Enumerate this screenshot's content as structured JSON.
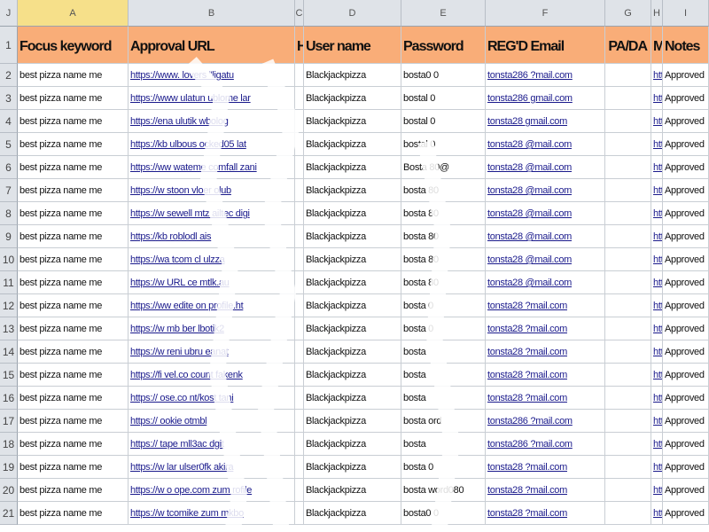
{
  "corner": "J",
  "columns": [
    "A",
    "B",
    "C",
    "D",
    "E",
    "F",
    "G",
    "H",
    "I"
  ],
  "header_row": {
    "number": "1",
    "cells": [
      "Focus keyword",
      "Approval URL",
      "H",
      "User name",
      "Password",
      "REG'D Email",
      "PA/DA",
      "M",
      "Notes"
    ]
  },
  "rows": [
    {
      "n": "2",
      "a": "best pizza name me",
      "b": "https://www.   lovers   \"ligatu",
      "d": "Blackjackpizza",
      "e": "bosta0   0",
      "f": "tonsta286   ?mail.com",
      "h": "htt",
      "i": "Approved"
    },
    {
      "n": "3",
      "a": "best pizza name me",
      "b": "https://www   ulatun   ublome   lar",
      "d": "Blackjackpizza",
      "e": "bostal   0",
      "f": "tonsta286   gmail.com",
      "h": "htt",
      "i": "Approved"
    },
    {
      "n": "4",
      "a": "best pizza name me",
      "b": "https://ena   ulutik   wbolog",
      "d": "Blackjackpizza",
      "e": "bostal   0",
      "f": "tonsta28   gmail.com",
      "h": "htt",
      "i": "Approved"
    },
    {
      "n": "5",
      "a": "best pizza name me",
      "b": "https://kb   ulbous   ocked05   lat",
      "d": "Blackjackpizza",
      "e": "bostal   0",
      "f": "tonsta28   @mail.com",
      "h": "htt",
      "i": "Approved"
    },
    {
      "n": "6",
      "a": "best pizza name me",
      "b": "https://ww   wateme   comfall   zani",
      "d": "Blackjackpizza",
      "e": "Bosta   80@",
      "f": "tonsta28   @mail.com",
      "h": "htt",
      "i": "Approved"
    },
    {
      "n": "7",
      "a": "best pizza name me",
      "b": "https://w   stoon   vloer   olub",
      "d": "Blackjackpizza",
      "e": "bosta   80",
      "f": "tonsta28   @mail.com",
      "h": "htt",
      "i": "Approved"
    },
    {
      "n": "8",
      "a": "best pizza name me",
      "b": "https://w   sewell   mtz   ailtec   digi",
      "d": "Blackjackpizza",
      "e": "bosta   80",
      "f": "tonsta28   @mail.com",
      "h": "htt",
      "i": "Approved"
    },
    {
      "n": "9",
      "a": "best pizza name me",
      "b": "https://kb   roblodl   ais",
      "d": "Blackjackpizza",
      "e": "bosta   80",
      "f": "tonsta28   @mail.com",
      "h": "htt",
      "i": "Approved"
    },
    {
      "n": "10",
      "a": "best pizza name me",
      "b": "https://wa   tcom   cl   ulzza",
      "d": "Blackjackpizza",
      "e": "bosta   80",
      "f": "tonsta28   @mail.com",
      "h": "htt",
      "i": "Approved"
    },
    {
      "n": "11",
      "a": "best pizza name me",
      "b": "https://w   URL   ce   mtlk.au",
      "d": "Blackjackpizza",
      "e": "bosta   80",
      "f": "tonsta28   @mail.com",
      "h": "htt",
      "i": "Approved"
    },
    {
      "n": "12",
      "a": "best pizza name me",
      "b": "https://ww   edite   on   profile.ht",
      "d": "Blackjackpizza",
      "e": "bosta   0",
      "f": "tonsta28   ?mail.com",
      "h": "htt",
      "i": "Approved"
    },
    {
      "n": "13",
      "a": "best pizza name me",
      "b": "https://w   mb   ber   lbotik2",
      "d": "Blackjackpizza",
      "e": "bosta   0",
      "f": "tonsta28   ?mail.com",
      "h": "htt",
      "i": "Approved"
    },
    {
      "n": "14",
      "a": "best pizza name me",
      "b": "https://w   reni   ubru   eanat",
      "d": "Blackjackpizza",
      "e": "bosta",
      "f": "tonsta28   ?mail.com",
      "h": "htt",
      "i": "Approved"
    },
    {
      "n": "15",
      "a": "best pizza name me",
      "b": "https://fi   vel.co   count   fakenk",
      "d": "Blackjackpizza",
      "e": "bosta",
      "f": "tonsta28   ?mail.com",
      "h": "htt",
      "i": "Approved"
    },
    {
      "n": "16",
      "a": "best pizza name me",
      "b": "https://   ose.co   nt/kost   tani",
      "d": "Blackjackpizza",
      "e": "bosta",
      "f": "tonsta28   ?mail.com",
      "h": "htt",
      "i": "Approved"
    },
    {
      "n": "17",
      "a": "best pizza name me",
      "b": "https://   ookie   otmbl",
      "d": "Blackjackpizza",
      "e": "bosta   ord",
      "f": "tonsta286   ?mail.com",
      "h": "htt",
      "i": "Approved"
    },
    {
      "n": "18",
      "a": "best pizza name me",
      "b": "https://   tape   mll3ac   dgit",
      "d": "Blackjackpizza",
      "e": "bosta",
      "f": "tonsta286   ?mail.com",
      "h": "htt",
      "i": "Approved"
    },
    {
      "n": "19",
      "a": "best pizza name me",
      "b": "https://w   lar   ulser0fk   akira",
      "d": "Blackjackpizza",
      "e": "bosta   0",
      "f": "tonsta28   ?mail.com",
      "h": "htt",
      "i": "Approved"
    },
    {
      "n": "20",
      "a": "best pizza name me",
      "b": "https://w   o   ope.com   zum   rofile",
      "d": "Blackjackpizza",
      "e": "bosta   word080",
      "f": "tonsta28   ?mail.com",
      "h": "htt",
      "i": "Approved"
    },
    {
      "n": "21",
      "a": "best pizza name me",
      "b": "https://w   tcomike   zum   mkbo",
      "d": "Blackjackpizza",
      "e": "bosta0   0",
      "f": "tonsta28   ?mail.com",
      "h": "htt",
      "i": "Approved"
    }
  ],
  "colors": {
    "header_fill": "#f9ad78",
    "selected_col": "#f6e08a",
    "link": "#1a1a8c"
  }
}
